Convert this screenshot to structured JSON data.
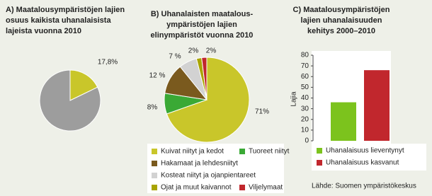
{
  "chart_data": [
    {
      "type": "pie",
      "title": [
        "A) Maatalousympäristöjen lajien",
        "osuus kaikista uhanalaisista",
        "lajeista vuonna 2010"
      ],
      "values": [
        17.8,
        82.2
      ],
      "value_labels": [
        "17,8%",
        null
      ],
      "colors": [
        "#c9c62a",
        "#9d9d9d"
      ]
    },
    {
      "type": "pie",
      "title": [
        "B) Uhanalaisten maatalous-",
        "ympäristöjen lajien",
        "elinympäristöt vuonna 2010"
      ],
      "categories": [
        "Kuivat niityt ja kedot",
        "Tuoreet niityt",
        "Hakamaat ja lehdesniityt",
        "Kosteat niityt ja ojanpientareet",
        "Ojat ja muut kaivannot",
        "Viljelymaat"
      ],
      "values": [
        71,
        8,
        12,
        7,
        2,
        2
      ],
      "value_labels": [
        "71%",
        "8%",
        "12 %",
        "7 %",
        "2%",
        "2%"
      ],
      "colors": [
        "#c9c62a",
        "#3aa935",
        "#7a5a1e",
        "#d2d2d2",
        "#a8a400",
        "#c1272d"
      ]
    },
    {
      "type": "bar",
      "title": [
        "C) Maatalousympäristöjen",
        "lajien uhanalaisuuden",
        "kehitys 2000–2010"
      ],
      "y_label": "Lajia",
      "categories": [
        "Uhanalaisuus lieventynyt",
        "Uhanalaisuus kasvanut"
      ],
      "values": [
        36,
        66
      ],
      "colors": [
        "#7cc31d",
        "#c1272d"
      ],
      "ylim": [
        0,
        80
      ],
      "yticks": [
        0,
        10,
        20,
        30,
        40,
        50,
        60,
        70,
        80
      ]
    }
  ],
  "source": "Lähde: Suomen ympäristökeskus"
}
